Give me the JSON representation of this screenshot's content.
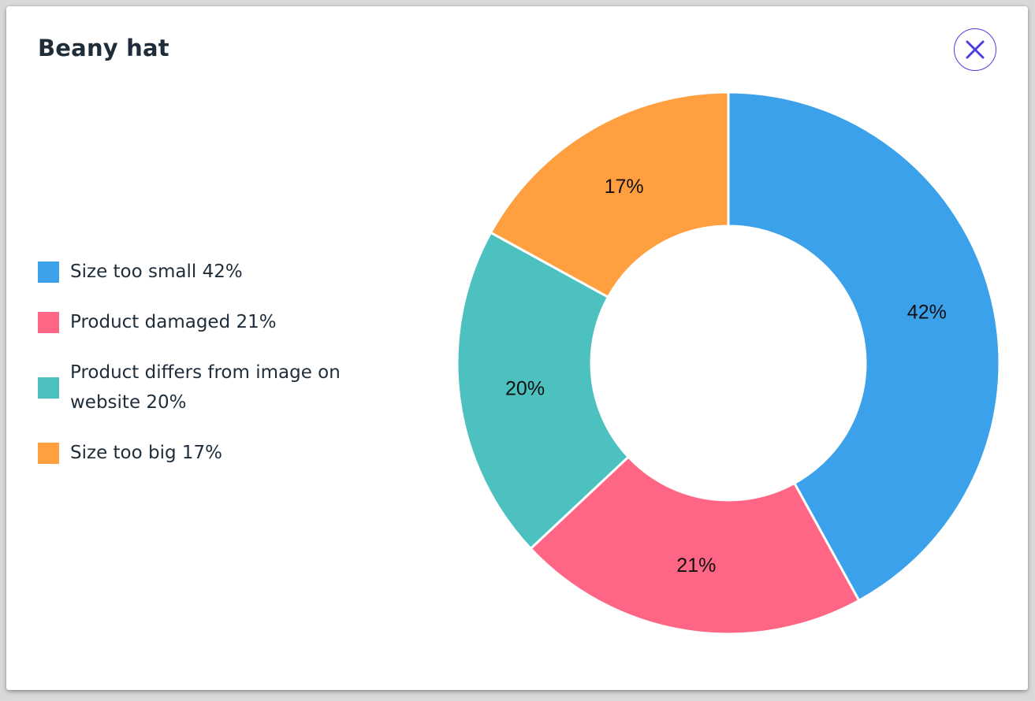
{
  "dialog": {
    "title": "Beany hat",
    "close_icon": "close-icon"
  },
  "legend": {
    "items": [
      {
        "label": "Size too small 42%",
        "color": "#3ba1ea"
      },
      {
        "label": "Product damaged 21%",
        "color": "#ff6584"
      },
      {
        "label": "Product differs from image on website 20%",
        "color": "#4dc0c0"
      },
      {
        "label": "Size too big 17%",
        "color": "#ff9f40"
      }
    ]
  },
  "chart_data": {
    "type": "pie",
    "variant": "doughnut",
    "title": "Beany hat",
    "legend_position": "left",
    "slices": [
      {
        "label": "Size too small",
        "value": 42,
        "display": "42%",
        "color": "#3ba1ea"
      },
      {
        "label": "Product damaged",
        "value": 21,
        "display": "21%",
        "color": "#ff6584"
      },
      {
        "label": "Product differs from image on website",
        "value": 20,
        "display": "20%",
        "color": "#4dc0c0"
      },
      {
        "label": "Size too big",
        "value": 17,
        "display": "17%",
        "color": "#ff9f40"
      }
    ]
  }
}
